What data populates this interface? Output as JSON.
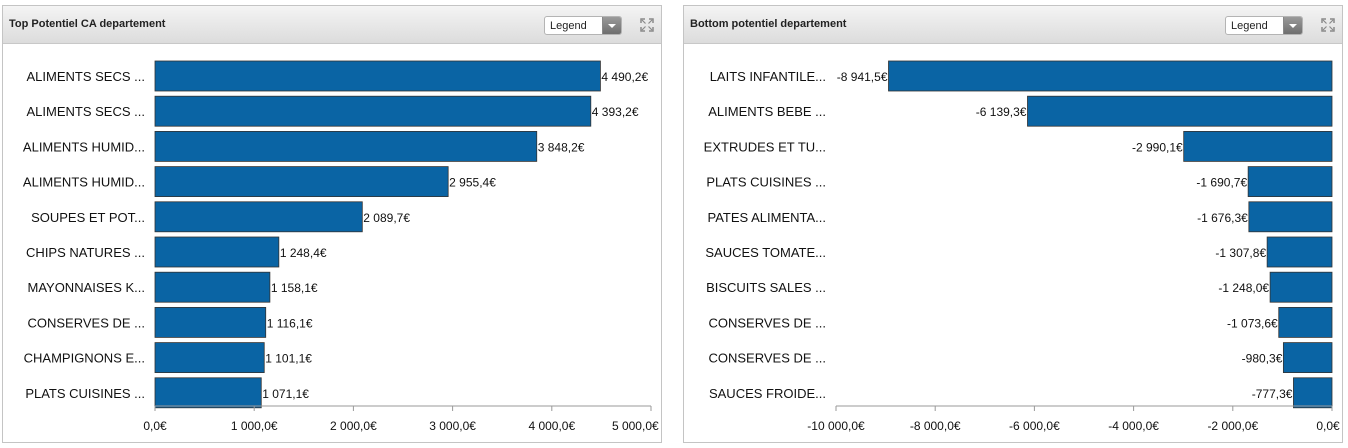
{
  "panels": [
    {
      "title": "Top Potentiel CA departement",
      "legend_label": "Legend",
      "expand_icon": "expand-icon"
    },
    {
      "title": "Bottom potentiel departement",
      "legend_label": "Legend",
      "expand_icon": "expand-icon"
    }
  ],
  "colors": {
    "bar": "#0a64a4",
    "bar_border": "#333333"
  },
  "chart_data": [
    {
      "type": "bar",
      "orientation": "horizontal",
      "title": "Top Potentiel CA departement",
      "categories": [
        "ALIMENTS SECS ...",
        "ALIMENTS SECS ...",
        "ALIMENTS HUMID...",
        "ALIMENTS HUMID...",
        "SOUPES ET POT...",
        "CHIPS NATURES ...",
        "MAYONNAISES K...",
        "CONSERVES DE ...",
        "CHAMPIGNONS E...",
        "PLATS CUISINES ..."
      ],
      "values": [
        4490.2,
        4393.2,
        3848.2,
        2955.4,
        2089.7,
        1248.4,
        1158.1,
        1116.1,
        1101.1,
        1071.1
      ],
      "value_labels": [
        "4 490,2€",
        "4 393,2€",
        "3 848,2€",
        "2 955,4€",
        "2 089,7€",
        "1 248,4€",
        "1 158,1€",
        "1 116,1€",
        "1 101,1€",
        "1 071,1€"
      ],
      "xlim": [
        0,
        5000
      ],
      "xticks": [
        0,
        1000,
        2000,
        3000,
        4000,
        5000
      ],
      "xtick_labels": [
        "0,0€",
        "1 000,0€",
        "2 000,0€",
        "3 000,0€",
        "4 000,0€",
        "5 000,0€"
      ],
      "grid": false
    },
    {
      "type": "bar",
      "orientation": "horizontal",
      "title": "Bottom potentiel departement",
      "categories": [
        "LAITS INFANTILE...",
        "ALIMENTS BEBE ...",
        "EXTRUDES ET TU...",
        "PLATS CUISINES ...",
        "PATES ALIMENTA...",
        "SAUCES TOMATE...",
        "BISCUITS SALES ...",
        "CONSERVES DE ...",
        "CONSERVES DE ...",
        "SAUCES FROIDE..."
      ],
      "values": [
        -8941.5,
        -6139.3,
        -2990.1,
        -1690.7,
        -1676.3,
        -1307.8,
        -1248.0,
        -1073.6,
        -980.3,
        -777.3
      ],
      "value_labels": [
        "-8 941,5€",
        "-6 139,3€",
        "-2 990,1€",
        "-1 690,7€",
        "-1 676,3€",
        "-1 307,8€",
        "-1 248,0€",
        "-1 073,6€",
        "-980,3€",
        "-777,3€"
      ],
      "xlim": [
        -10000,
        0
      ],
      "xticks": [
        -10000,
        -8000,
        -6000,
        -4000,
        -2000,
        0
      ],
      "xtick_labels": [
        "-10 000,0€",
        "-8 000,0€",
        "-6 000,0€",
        "-4 000,0€",
        "-2 000,0€",
        "0,0€"
      ],
      "grid": false
    }
  ]
}
